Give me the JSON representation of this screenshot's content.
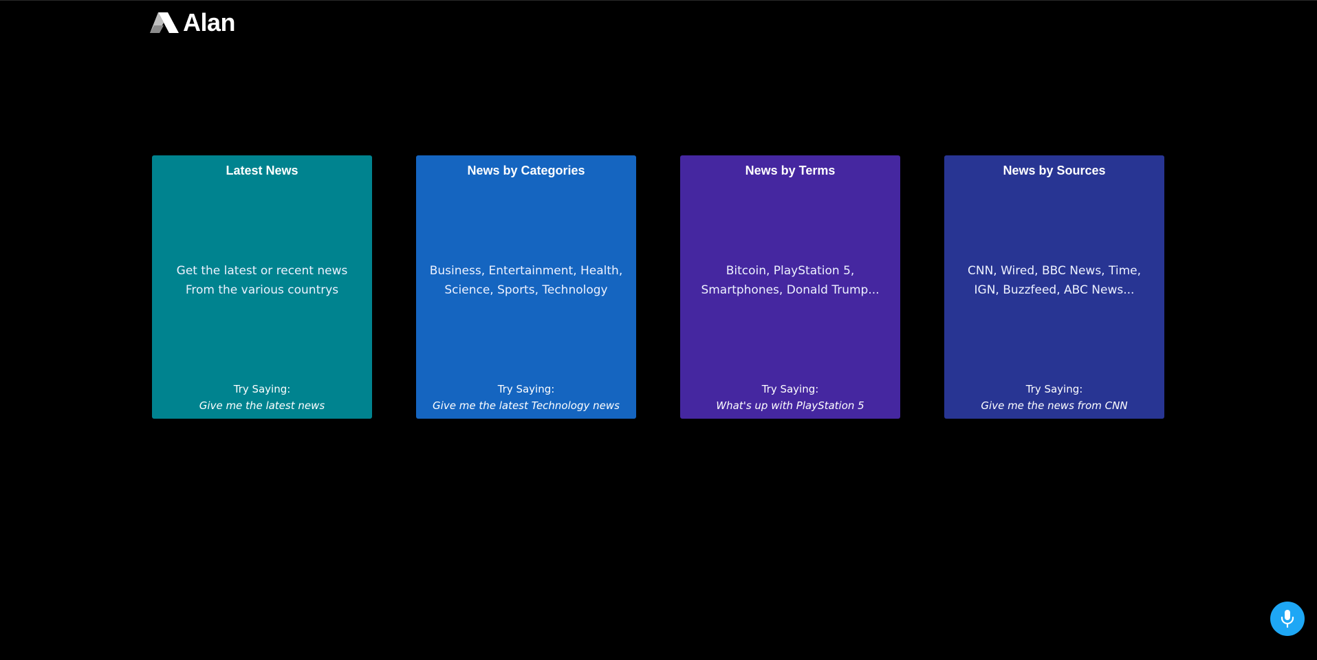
{
  "header": {
    "logo_text": "Alan"
  },
  "cards": [
    {
      "title": "Latest News",
      "description": "Get the latest or recent news From the various countrys",
      "try_label": "Try Saying:",
      "example": "Give me the latest news",
      "color": "#00838f"
    },
    {
      "title": "News by Categories",
      "description": "Business, Entertainment, Health, Science, Sports, Technology",
      "try_label": "Try Saying:",
      "example": "Give me the latest Technology news",
      "color": "#1565c0"
    },
    {
      "title": "News by Terms",
      "description": "Bitcoin, PlayStation 5, Smartphones, Donald Trump...",
      "try_label": "Try Saying:",
      "example": "What's up with PlayStation 5",
      "color": "#4527a0"
    },
    {
      "title": "News by Sources",
      "description": "CNN, Wired, BBC News, Time, IGN, Buzzfeed, ABC News...",
      "try_label": "Try Saying:",
      "example": "Give me the news from CNN",
      "color": "#283593"
    }
  ],
  "mic": {
    "icon": "microphone-icon",
    "color": "#1ea7f5"
  }
}
